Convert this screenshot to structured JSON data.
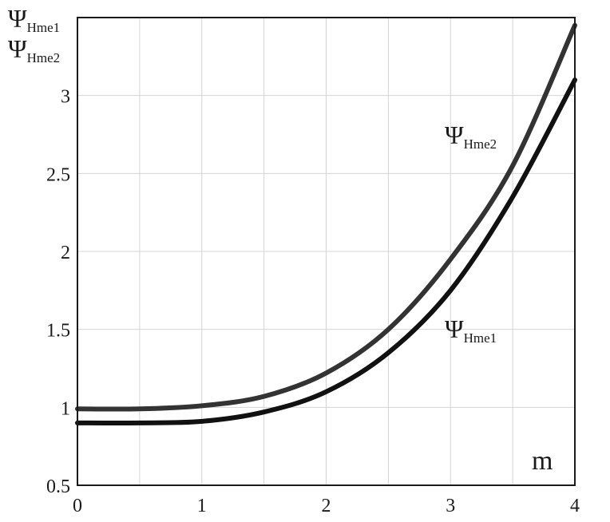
{
  "chart_data": {
    "type": "line",
    "title": "",
    "xlabel": "m",
    "ylabel": [
      {
        "symbol": "Ψ",
        "subscript": "Hme1"
      },
      {
        "symbol": "Ψ",
        "subscript": "Hme2"
      }
    ],
    "xlim": [
      0,
      4
    ],
    "ylim": [
      0.5,
      3.5
    ],
    "x_ticks": [
      0,
      1,
      2,
      3,
      4
    ],
    "y_ticks": [
      0.5,
      1,
      1.5,
      2,
      2.5,
      3
    ],
    "x_tick_labels": [
      "0",
      "1",
      "2",
      "3",
      "4"
    ],
    "y_tick_labels": [
      "0.5",
      "1",
      "1.5",
      "2",
      "2.5",
      "3"
    ],
    "grid": true,
    "series": [
      {
        "name": "Hme1",
        "symbol": "Ψ",
        "x": [
          0,
          0.5,
          1,
          1.5,
          2,
          2.5,
          3,
          3.5,
          4
        ],
        "y": [
          0.9,
          0.9,
          0.91,
          0.97,
          1.1,
          1.35,
          1.75,
          2.35,
          3.1
        ],
        "color": "#111111"
      },
      {
        "name": "Hme2",
        "symbol": "Ψ",
        "x": [
          0,
          0.5,
          1,
          1.5,
          2,
          2.5,
          3,
          3.5,
          4
        ],
        "y": [
          0.99,
          0.99,
          1.01,
          1.07,
          1.22,
          1.5,
          1.95,
          2.55,
          3.45
        ],
        "color": "#333333"
      }
    ]
  }
}
